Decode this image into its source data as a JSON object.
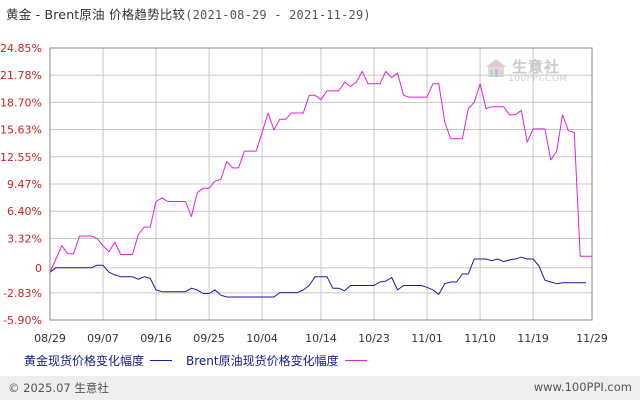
{
  "header": {
    "title": "黄金 - Brent原油 价格趋势比较",
    "range": "(2021-08-29 - 2021-11-29)"
  },
  "watermark": {
    "name": "生意社",
    "url": "100PPI.COM"
  },
  "footer": {
    "copyright": "© 2025.07 生意社",
    "url": "www.100PPI.com"
  },
  "colors": {
    "gold": "#1a1aa8",
    "brent": "#e020e0",
    "grid": "#c8c8c8",
    "axis": "#888888"
  },
  "chart_data": {
    "type": "line",
    "ylim": [
      -5.9,
      24.85
    ],
    "y_ticks": [
      {
        "value": 24.85,
        "label": "24.85%"
      },
      {
        "value": 21.78,
        "label": "21.78%"
      },
      {
        "value": 18.7,
        "label": "18.70%"
      },
      {
        "value": 15.63,
        "label": "15.63%"
      },
      {
        "value": 12.55,
        "label": "12.55%"
      },
      {
        "value": 9.47,
        "label": "9.47%"
      },
      {
        "value": 6.4,
        "label": "6.40%"
      },
      {
        "value": 3.32,
        "label": "3.32%"
      },
      {
        "value": 0,
        "label": "0"
      },
      {
        "value": -2.83,
        "label": "-2.83%"
      },
      {
        "value": -5.9,
        "label": "-5.90%"
      }
    ],
    "x_range": [
      0,
      92
    ],
    "x_ticks": [
      {
        "day": 0,
        "label": "08/29"
      },
      {
        "day": 9,
        "label": "09/07"
      },
      {
        "day": 18,
        "label": "09/16"
      },
      {
        "day": 27,
        "label": "09/25"
      },
      {
        "day": 36,
        "label": "10/04"
      },
      {
        "day": 46,
        "label": "10/14"
      },
      {
        "day": 55,
        "label": "10/23"
      },
      {
        "day": 64,
        "label": "11/01"
      },
      {
        "day": 73,
        "label": "11/10"
      },
      {
        "day": 82,
        "label": "11/19"
      },
      {
        "day": 92,
        "label": "11/29"
      }
    ],
    "series": [
      {
        "name": "黄金现货价格变化幅度",
        "points": [
          [
            0,
            -0.5
          ],
          [
            1,
            0
          ],
          [
            2,
            0
          ],
          [
            4,
            0
          ],
          [
            6,
            0
          ],
          [
            7,
            0
          ],
          [
            8,
            0.3
          ],
          [
            9,
            0.3
          ],
          [
            10,
            -0.5
          ],
          [
            11,
            -0.8
          ],
          [
            12,
            -1
          ],
          [
            13,
            -1
          ],
          [
            14,
            -1
          ],
          [
            15,
            -1.3
          ],
          [
            16,
            -1
          ],
          [
            17,
            -1.2
          ],
          [
            18,
            -2.5
          ],
          [
            19,
            -2.7
          ],
          [
            20,
            -2.7
          ],
          [
            22,
            -2.7
          ],
          [
            23,
            -2.7
          ],
          [
            24,
            -2.3
          ],
          [
            25,
            -2.5
          ],
          [
            26,
            -2.9
          ],
          [
            27,
            -2.9
          ],
          [
            28,
            -2.5
          ],
          [
            29,
            -3.1
          ],
          [
            30,
            -3.3
          ],
          [
            31,
            -3.3
          ],
          [
            33,
            -3.3
          ],
          [
            35,
            -3.3
          ],
          [
            37,
            -3.3
          ],
          [
            38,
            -3.3
          ],
          [
            39,
            -2.8
          ],
          [
            40,
            -2.8
          ],
          [
            42,
            -2.8
          ],
          [
            43,
            -2.5
          ],
          [
            44,
            -2
          ],
          [
            45,
            -1
          ],
          [
            46,
            -1
          ],
          [
            47,
            -1
          ],
          [
            48,
            -2.3
          ],
          [
            49,
            -2.3
          ],
          [
            50,
            -2.6
          ],
          [
            51,
            -2
          ],
          [
            52,
            -2
          ],
          [
            53,
            -2
          ],
          [
            54,
            -2
          ],
          [
            55,
            -2
          ],
          [
            56,
            -1.6
          ],
          [
            57,
            -1.5
          ],
          [
            58,
            -1.1
          ],
          [
            59,
            -2.5
          ],
          [
            60,
            -2
          ],
          [
            61,
            -2
          ],
          [
            62,
            -2
          ],
          [
            63,
            -2
          ],
          [
            64,
            -2.2
          ],
          [
            65,
            -2.5
          ],
          [
            66,
            -3
          ],
          [
            67,
            -1.8
          ],
          [
            68,
            -1.6
          ],
          [
            69,
            -1.6
          ],
          [
            70,
            -0.7
          ],
          [
            71,
            -0.7
          ],
          [
            72,
            1
          ],
          [
            73,
            1
          ],
          [
            74,
            1
          ],
          [
            75,
            0.8
          ],
          [
            76,
            1
          ],
          [
            77,
            0.7
          ],
          [
            78,
            0.9
          ],
          [
            79,
            1
          ],
          [
            80,
            1.2
          ],
          [
            81,
            1
          ],
          [
            82,
            1
          ],
          [
            83,
            0.2
          ],
          [
            84,
            -1.4
          ],
          [
            85,
            -1.6
          ],
          [
            86,
            -1.8
          ],
          [
            87,
            -1.7
          ],
          [
            88,
            -1.7
          ],
          [
            90,
            -1.7
          ],
          [
            91,
            -1.7
          ]
        ]
      },
      {
        "name": "Brent原油现货价格变化幅度",
        "points": [
          [
            0,
            -0.5
          ],
          [
            1,
            1
          ],
          [
            2,
            2.5
          ],
          [
            3,
            1.6
          ],
          [
            4,
            1.6
          ],
          [
            5,
            3.6
          ],
          [
            6,
            3.6
          ],
          [
            7,
            3.6
          ],
          [
            8,
            3.3
          ],
          [
            9,
            2.5
          ],
          [
            10,
            1.8
          ],
          [
            11,
            2.9
          ],
          [
            12,
            1.5
          ],
          [
            13,
            1.5
          ],
          [
            14,
            1.5
          ],
          [
            15,
            3.8
          ],
          [
            16,
            4.6
          ],
          [
            17,
            4.6
          ],
          [
            18,
            7.5
          ],
          [
            19,
            7.9
          ],
          [
            20,
            7.5
          ],
          [
            21,
            7.5
          ],
          [
            22,
            7.5
          ],
          [
            23,
            7.5
          ],
          [
            24,
            5.8
          ],
          [
            25,
            8.5
          ],
          [
            26,
            9
          ],
          [
            27,
            9
          ],
          [
            28,
            9.8
          ],
          [
            29,
            10
          ],
          [
            30,
            12
          ],
          [
            31,
            11.3
          ],
          [
            32,
            11.3
          ],
          [
            33,
            13.2
          ],
          [
            34,
            13.2
          ],
          [
            35,
            13.2
          ],
          [
            36,
            15.3
          ],
          [
            37,
            17.5
          ],
          [
            38,
            15.6
          ],
          [
            39,
            16.8
          ],
          [
            40,
            16.8
          ],
          [
            41,
            17.5
          ],
          [
            42,
            17.5
          ],
          [
            43,
            17.5
          ],
          [
            44,
            19.5
          ],
          [
            45,
            19.5
          ],
          [
            46,
            19
          ],
          [
            47,
            20
          ],
          [
            48,
            20
          ],
          [
            49,
            20
          ],
          [
            50,
            21
          ],
          [
            51,
            20.5
          ],
          [
            52,
            21
          ],
          [
            53,
            22.2
          ],
          [
            54,
            20.8
          ],
          [
            55,
            20.8
          ],
          [
            56,
            20.8
          ],
          [
            57,
            22.2
          ],
          [
            58,
            21.5
          ],
          [
            59,
            22
          ],
          [
            60,
            19.5
          ],
          [
            61,
            19.3
          ],
          [
            62,
            19.3
          ],
          [
            63,
            19.3
          ],
          [
            64,
            19.3
          ],
          [
            65,
            20.8
          ],
          [
            66,
            20.8
          ],
          [
            67,
            16.5
          ],
          [
            68,
            14.6
          ],
          [
            69,
            14.6
          ],
          [
            70,
            14.6
          ],
          [
            71,
            18
          ],
          [
            72,
            18.7
          ],
          [
            73,
            20.8
          ],
          [
            74,
            18
          ],
          [
            75,
            18.2
          ],
          [
            76,
            18.2
          ],
          [
            77,
            18.2
          ],
          [
            78,
            17.3
          ],
          [
            79,
            17.3
          ],
          [
            80,
            17.8
          ],
          [
            81,
            14.2
          ],
          [
            82,
            15.7
          ],
          [
            83,
            15.7
          ],
          [
            84,
            15.7
          ],
          [
            85,
            12.2
          ],
          [
            86,
            13.2
          ],
          [
            87,
            17.3
          ],
          [
            88,
            15.5
          ],
          [
            89,
            15.3
          ],
          [
            90,
            1.3
          ],
          [
            91,
            1.3
          ],
          [
            92,
            1.3
          ]
        ]
      }
    ]
  }
}
